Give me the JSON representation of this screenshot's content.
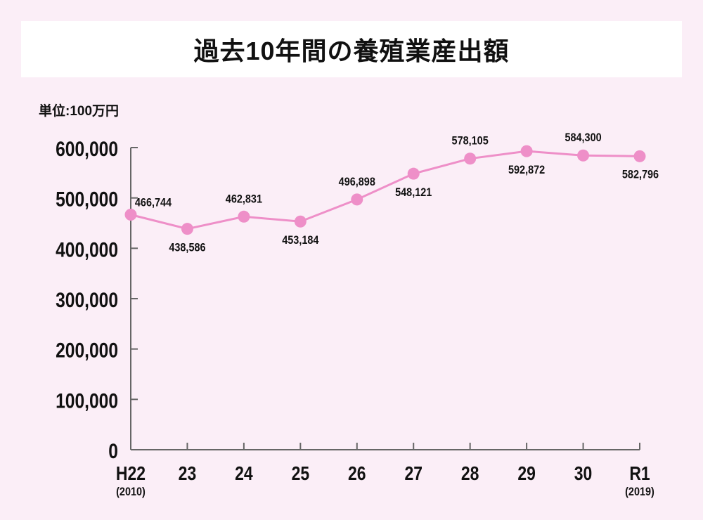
{
  "chart_data": {
    "type": "line",
    "title": "過去10年間の養殖業産出額",
    "unit_label": "単位:100万円",
    "categories": [
      "H22",
      "23",
      "24",
      "25",
      "26",
      "27",
      "28",
      "29",
      "30",
      "R1"
    ],
    "category_sublabels": [
      "(2010)",
      "",
      "",
      "",
      "",
      "",
      "",
      "",
      "",
      "(2019)"
    ],
    "values": [
      466744,
      438586,
      462831,
      453184,
      496898,
      548121,
      578105,
      592872,
      584300,
      582796
    ],
    "data_labels": [
      "466,744",
      "438,586",
      "462,831",
      "453,184",
      "496,898",
      "548,121",
      "578,105",
      "592,872",
      "584,300",
      "582,796"
    ],
    "yticks": [
      0,
      100000,
      200000,
      300000,
      400000,
      500000,
      600000
    ],
    "ytick_labels": [
      "0",
      "100,000",
      "200,000",
      "300,000",
      "400,000",
      "500,000",
      "600,000"
    ],
    "ylim": [
      0,
      600000
    ],
    "grid": false,
    "legend": "none",
    "colors": {
      "line": "#ee8fc8",
      "background": "#fbeef7",
      "axis": "#666666"
    }
  }
}
